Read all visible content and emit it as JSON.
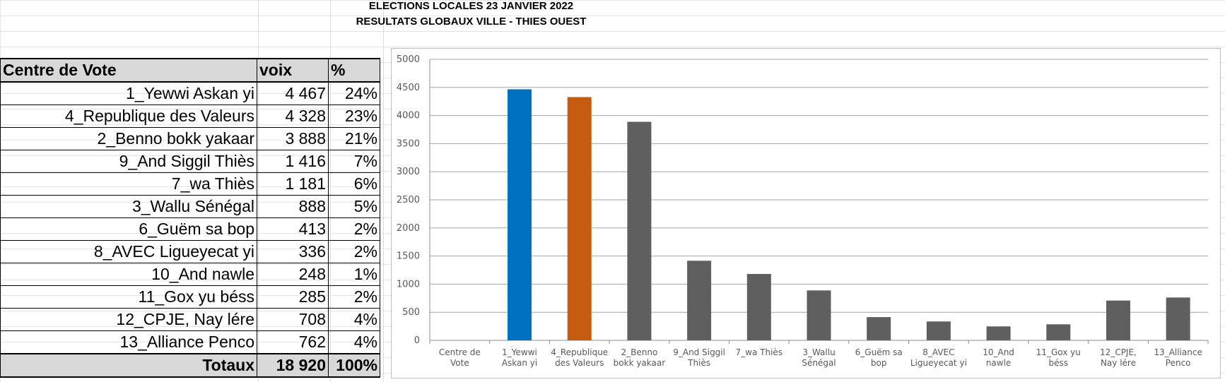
{
  "title_line1": "ELECTIONS LOCALES 23 JANVIER 2022",
  "title_line2": "RESULTATS GLOBAUX VILLE - THIES OUEST",
  "table": {
    "headers": [
      "Centre de Vote",
      "voix",
      "%"
    ],
    "rows": [
      {
        "name": "1_Yewwi Askan yi",
        "voix": "4 467",
        "pct": "24%"
      },
      {
        "name": "4_Republique des Valeurs",
        "voix": "4 328",
        "pct": "23%"
      },
      {
        "name": "2_Benno bokk yakaar",
        "voix": "3 888",
        "pct": "21%"
      },
      {
        "name": "9_And Siggil Thiès",
        "voix": "1 416",
        "pct": "7%"
      },
      {
        "name": "7_wa Thiès",
        "voix": "1 181",
        "pct": "6%"
      },
      {
        "name": "3_Wallu Sénégal",
        "voix": "888",
        "pct": "5%"
      },
      {
        "name": "6_Guëm sa bop",
        "voix": "413",
        "pct": "2%"
      },
      {
        "name": "8_AVEC Ligueyecat yi",
        "voix": "336",
        "pct": "2%"
      },
      {
        "name": "10_And nawle",
        "voix": "248",
        "pct": "1%"
      },
      {
        "name": "11_Gox yu béss",
        "voix": "285",
        "pct": "2%"
      },
      {
        "name": "12_CPJE, Nay lére",
        "voix": "708",
        "pct": "4%"
      },
      {
        "name": "13_Alliance Penco",
        "voix": "762",
        "pct": "4%"
      }
    ],
    "totals": {
      "label": "Totaux",
      "voix": "18 920",
      "pct": "100%"
    }
  },
  "chart_data": {
    "type": "bar",
    "categories": [
      [
        "Centre de",
        "Vote"
      ],
      [
        "1_Yewwi",
        "Askan yi"
      ],
      [
        "4_Republique",
        "des Valeurs"
      ],
      [
        "2_Benno",
        "bokk yakaar"
      ],
      [
        "9_And Siggil",
        "Thiès"
      ],
      [
        "7_wa Thiès"
      ],
      [
        "3_Wallu",
        "Sénégal"
      ],
      [
        "6_Guëm sa",
        "bop"
      ],
      [
        "8_AVEC",
        "Ligueyecat yi"
      ],
      [
        "10_And",
        "nawle"
      ],
      [
        "11_Gox yu",
        "béss"
      ],
      [
        "12_CPJE,",
        "Nay lére"
      ],
      [
        "13_Alliance",
        "Penco"
      ]
    ],
    "values": [
      null,
      4467,
      4328,
      3888,
      1416,
      1181,
      888,
      413,
      336,
      248,
      285,
      708,
      762
    ],
    "bar_colors": [
      "#5f5f5f",
      "#0070c0",
      "#c55a11",
      "#5f5f5f",
      "#5f5f5f",
      "#5f5f5f",
      "#5f5f5f",
      "#5f5f5f",
      "#5f5f5f",
      "#5f5f5f",
      "#5f5f5f",
      "#5f5f5f",
      "#5f5f5f"
    ],
    "ylim": [
      0,
      5000
    ],
    "yticks": [
      0,
      500,
      1000,
      1500,
      2000,
      2500,
      3000,
      3500,
      4000,
      4500,
      5000
    ],
    "grid": true,
    "legend": "none"
  }
}
